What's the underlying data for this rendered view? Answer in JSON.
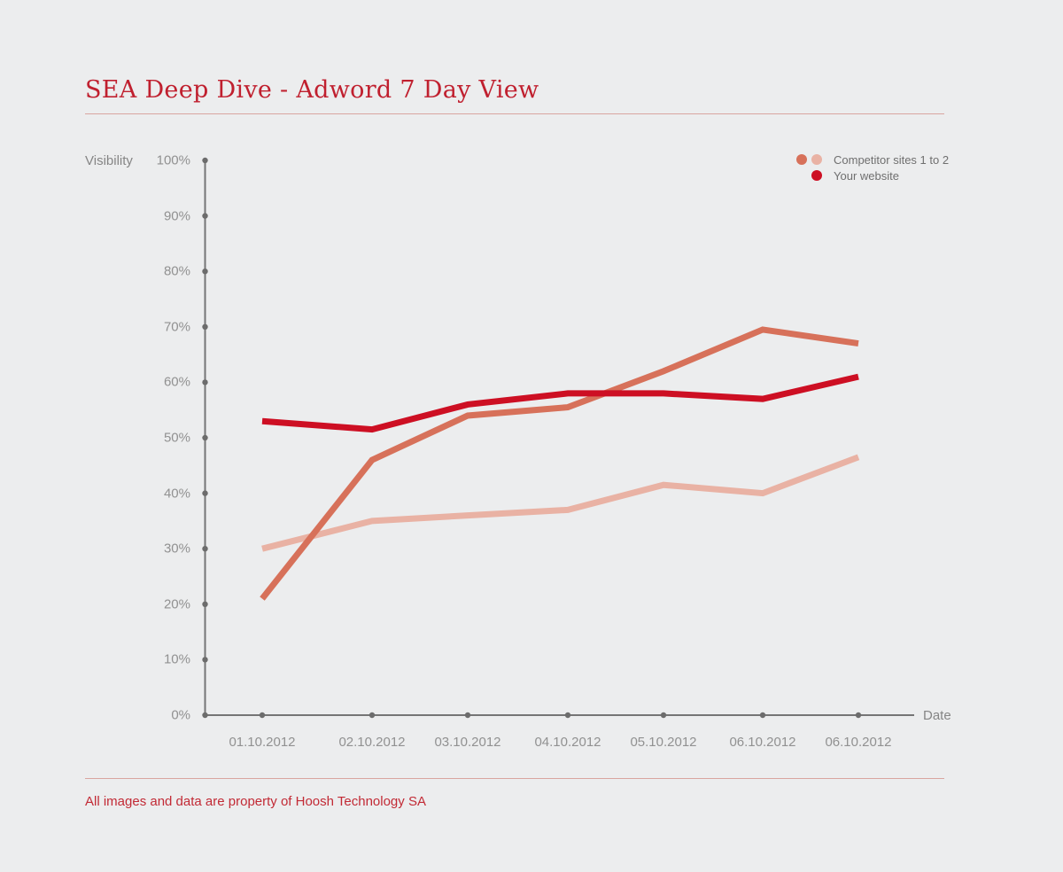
{
  "title": "SEA Deep Dive - Adword 7 Day View",
  "footer": "All images and data are property of Hoosh Technology SA",
  "legend": {
    "competitors_label": "Competitor sites 1 to 2",
    "your_website_label": "Your website"
  },
  "colors": {
    "title_red": "#c0202f",
    "footer_red": "#c22a35",
    "divider_pink": "#d9a5a0",
    "axis_line_gray": "#757575",
    "tick_dot_gray": "#6c6c6c",
    "tick_label_gray": "#919191",
    "axis_title_gray": "#858585",
    "legend_text_gray": "#6f6f6f",
    "background": "#ecedee"
  },
  "chart_data": {
    "type": "line",
    "title": "SEA Deep Dive - Adword 7 Day View",
    "xlabel": "Date",
    "ylabel": "Visibility",
    "categories": [
      "01.10.2012",
      "02.10.2012",
      "03.10.2012",
      "04.10.2012",
      "05.10.2012",
      "06.10.2012",
      "06.10.2012"
    ],
    "ytick_labels": [
      "0%",
      "10%",
      "20%",
      "30%",
      "40%",
      "50%",
      "60%",
      "70%",
      "80%",
      "90%",
      "100%"
    ],
    "ylim": [
      0,
      100
    ],
    "grid": false,
    "legend_position": "top-right",
    "series": [
      {
        "name": "Competitor site 1",
        "legend_group": "Competitor sites 1 to 2",
        "color": "#d7715a",
        "values": [
          21,
          46,
          54,
          55.5,
          62,
          69.5,
          67
        ]
      },
      {
        "name": "Competitor site 2",
        "legend_group": "Competitor sites 1 to 2",
        "color": "#e9b2a4",
        "values": [
          30,
          35,
          36,
          37,
          41.5,
          40,
          46.5
        ]
      },
      {
        "name": "Your website",
        "legend_group": "Your website",
        "color": "#cd0f23",
        "values": [
          53,
          51.5,
          56,
          58,
          58,
          57,
          61
        ]
      }
    ]
  }
}
